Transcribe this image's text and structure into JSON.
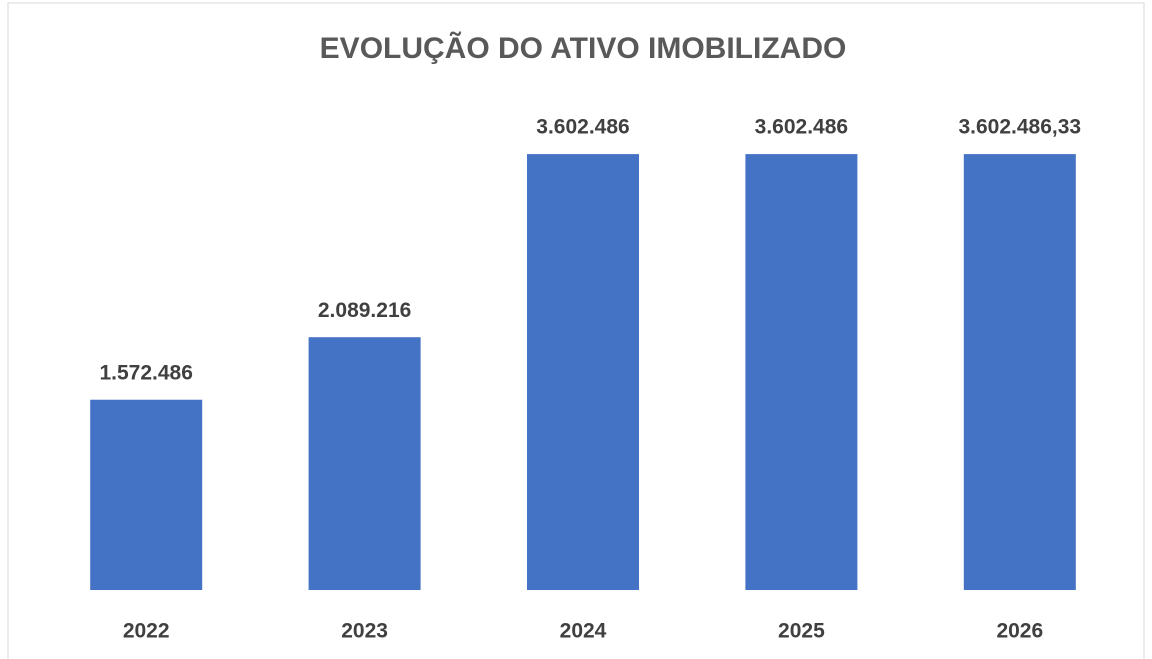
{
  "chart_data": {
    "type": "bar",
    "title": "EVOLUÇÃO DO ATIVO IMOBILIZADO",
    "categories": [
      "2022",
      "2023",
      "2024",
      "2025",
      "2026"
    ],
    "values": [
      1572486,
      2089216,
      3602486,
      3602486,
      3602486.33
    ],
    "value_labels": [
      "1.572.486",
      "2.089.216",
      "3.602.486",
      "3.602.486",
      "3.602.486,33"
    ],
    "color": "#4472c4",
    "ylim": [
      0,
      4000000
    ],
    "grid": false
  }
}
